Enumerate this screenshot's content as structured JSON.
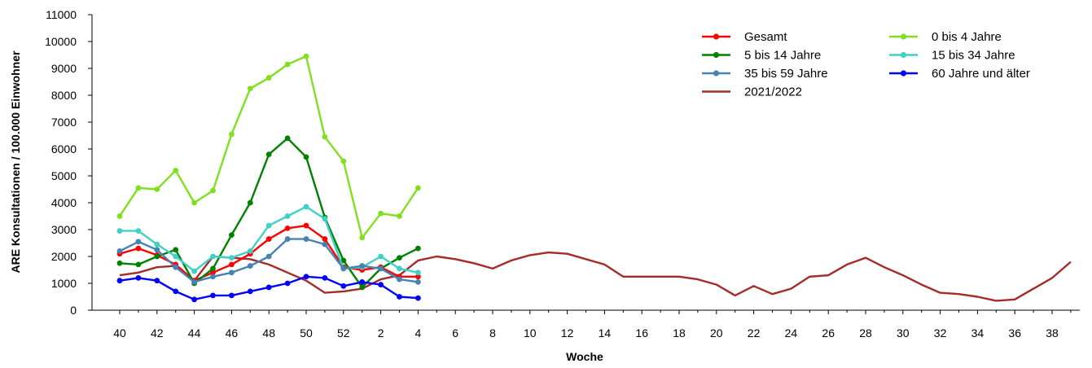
{
  "chart_data": {
    "type": "line",
    "xlabel": "Woche",
    "ylabel": "ARE Konsultationen / 100.000 Einwohner",
    "ylim": [
      0,
      11000
    ],
    "yticks": [
      0,
      1000,
      2000,
      3000,
      4000,
      5000,
      6000,
      7000,
      8000,
      9000,
      10000,
      11000
    ],
    "weeks": [
      "40",
      "41",
      "42",
      "43",
      "44",
      "45",
      "46",
      "47",
      "48",
      "49",
      "50",
      "51",
      "52",
      "1",
      "2",
      "3",
      "4",
      "5",
      "6",
      "7",
      "8",
      "9",
      "10",
      "11",
      "12",
      "13",
      "14",
      "15",
      "16",
      "17",
      "18",
      "19",
      "20",
      "21",
      "22",
      "23",
      "24",
      "25",
      "26",
      "27",
      "28",
      "29",
      "30",
      "31",
      "32",
      "33",
      "34",
      "35",
      "36",
      "37",
      "38",
      "39"
    ],
    "tick_labels": [
      "40",
      "42",
      "44",
      "46",
      "48",
      "50",
      "52",
      "2",
      "4",
      "6",
      "8",
      "10",
      "12",
      "14",
      "16",
      "18",
      "20",
      "22",
      "24",
      "26",
      "28",
      "30",
      "32",
      "34",
      "36",
      "38"
    ],
    "grid": false,
    "legend_position": "top-right",
    "series": [
      {
        "name": "Gesamt",
        "color": "#ff0000",
        "markers": true,
        "values": [
          2100,
          2300,
          2050,
          1700,
          1100,
          1400,
          1700,
          2100,
          2650,
          3050,
          3150,
          2650,
          1600,
          1500,
          1600,
          1250,
          1250
        ]
      },
      {
        "name": "0 bis 4 Jahre",
        "color": "#80e020",
        "markers": true,
        "values": [
          3500,
          4550,
          4500,
          5200,
          4000,
          4450,
          6550,
          8250,
          8650,
          9150,
          9450,
          6450,
          5550,
          2700,
          3600,
          3500,
          4550
        ]
      },
      {
        "name": "5 bis 14 Jahre",
        "color": "#008000",
        "markers": true,
        "values": [
          1750,
          1700,
          2000,
          2250,
          1000,
          1550,
          2800,
          4000,
          5800,
          6400,
          5700,
          3450,
          1850,
          850,
          1550,
          1950,
          2300
        ]
      },
      {
        "name": "15 bis 34 Jahre",
        "color": "#40d0c8",
        "markers": true,
        "values": [
          2950,
          2950,
          2450,
          2000,
          1450,
          2000,
          1950,
          2200,
          3150,
          3500,
          3850,
          3400,
          1550,
          1600,
          2000,
          1550,
          1400
        ]
      },
      {
        "name": "35 bis 59 Jahre",
        "color": "#4682b4",
        "markers": true,
        "values": [
          2200,
          2550,
          2250,
          1600,
          1050,
          1250,
          1400,
          1650,
          2000,
          2650,
          2650,
          2450,
          1550,
          1650,
          1550,
          1150,
          1050
        ]
      },
      {
        "name": "60 Jahre und älter",
        "color": "#0000ff",
        "markers": true,
        "values": [
          1100,
          1200,
          1100,
          700,
          400,
          550,
          550,
          700,
          850,
          1000,
          1250,
          1200,
          900,
          1050,
          950,
          500,
          450
        ]
      },
      {
        "name": "2021/2022",
        "color": "#a52a2a",
        "markers": false,
        "values": [
          1300,
          1400,
          1600,
          1650,
          1100,
          2000,
          1950,
          1900,
          1700,
          1400,
          1100,
          650,
          700,
          800,
          1150,
          1300,
          1850,
          2000,
          1900,
          1750,
          1550,
          1850,
          2050,
          2150,
          2100,
          1900,
          1700,
          1250,
          1250,
          1250,
          1250,
          1150,
          950,
          550,
          900,
          600,
          800,
          1250,
          1300,
          1700,
          1950,
          1600,
          1300,
          950,
          650,
          600,
          500,
          350,
          400,
          800,
          1200,
          1800
        ]
      }
    ],
    "legend_order": [
      "Gesamt",
      "0 bis 4 Jahre",
      "5 bis 14 Jahre",
      "15 bis 34 Jahre",
      "35 bis 59 Jahre",
      "60 Jahre und älter",
      "2021/2022"
    ]
  }
}
